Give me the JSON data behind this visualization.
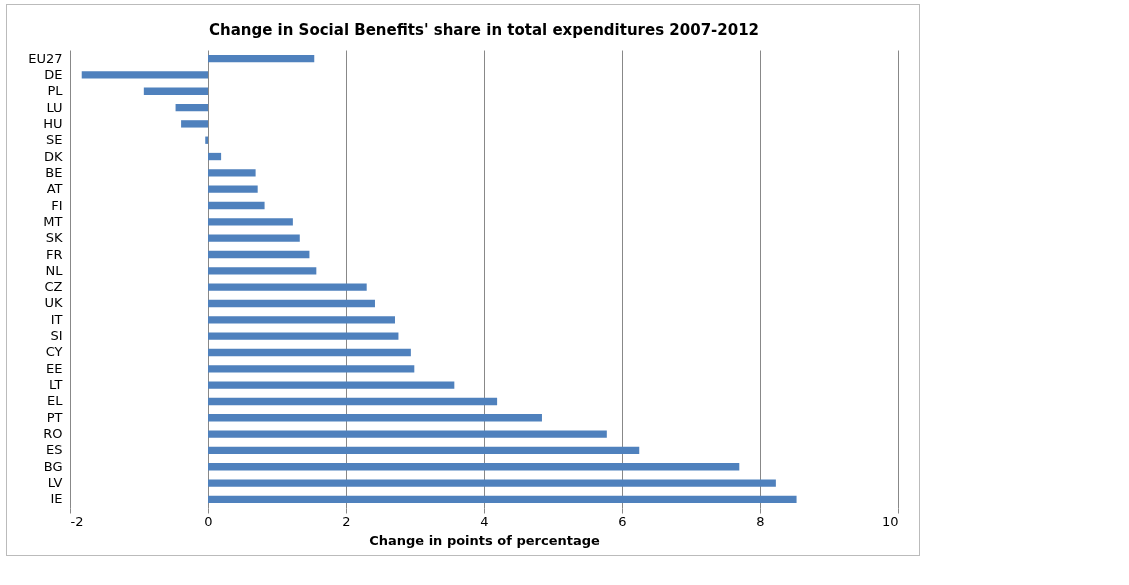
{
  "chart_data": {
    "type": "bar",
    "orientation": "horizontal",
    "title": "Change in Social Benefits' share in total expenditures 2007-2012",
    "xlabel": "Change in points of percentage",
    "categories": [
      "EU27",
      "DE",
      "PL",
      "LU",
      "HU",
      "SE",
      "DK",
      "BE",
      "AT",
      "FI",
      "MT",
      "SK",
      "FR",
      "NL",
      "CZ",
      "UK",
      "IT",
      "SI",
      "CY",
      "EE",
      "LT",
      "EL",
      "PT",
      "RO",
      "ES",
      "BG",
      "LV",
      "IE"
    ],
    "values": [
      1.54,
      -1.83,
      -0.93,
      -0.47,
      -0.39,
      -0.04,
      0.19,
      0.69,
      0.72,
      0.82,
      1.23,
      1.33,
      1.47,
      1.57,
      2.3,
      2.42,
      2.71,
      2.76,
      2.94,
      2.99,
      3.57,
      4.19,
      4.84,
      5.78,
      6.25,
      7.7,
      8.23,
      8.53
    ],
    "color": "#4f81bd",
    "xlim": [
      -2,
      10
    ],
    "xticks": [
      -2,
      0,
      2,
      4,
      6,
      8,
      10
    ],
    "grid": "x"
  }
}
